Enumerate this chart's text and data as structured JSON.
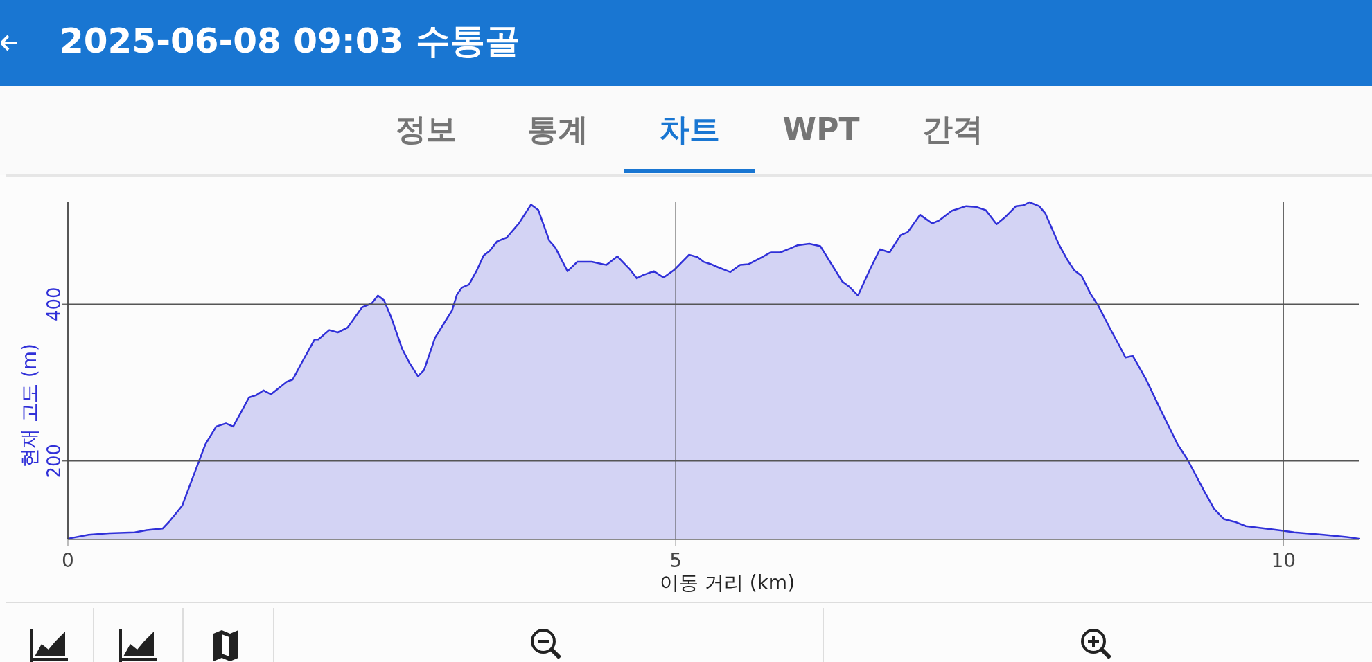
{
  "chart_data": {
    "type": "area",
    "title": "2025-06-08 09:03 수통골",
    "annotations": [
      "정보",
      "통계",
      "차트",
      "WPT",
      "간격"
    ],
    "xlabel": "이동 거리 (km)",
    "ylabel": "현재 고도 (m)",
    "xlim": [
      0,
      10.62
    ],
    "ylim": [
      100,
      530
    ],
    "xticks": [
      0,
      5,
      10
    ],
    "yticks": [
      200,
      400
    ],
    "grid": true,
    "color": "#3030d8",
    "x": [
      0,
      0.17,
      0.34,
      0.55,
      0.65,
      0.78,
      0.84,
      0.94,
      1.03,
      1.13,
      1.22,
      1.3,
      1.36,
      1.42,
      1.49,
      1.55,
      1.61,
      1.67,
      1.8,
      1.85,
      1.94,
      2.03,
      2.06,
      2.15,
      2.22,
      2.3,
      2.42,
      2.5,
      2.55,
      2.6,
      2.66,
      2.75,
      2.81,
      2.88,
      2.93,
      3.02,
      3.1,
      3.16,
      3.2,
      3.24,
      3.3,
      3.36,
      3.42,
      3.47,
      3.53,
      3.61,
      3.71,
      3.81,
      3.87,
      3.96,
      4.01,
      4.11,
      4.19,
      4.31,
      4.43,
      4.52,
      4.62,
      4.68,
      4.73,
      4.82,
      4.9,
      4.99,
      5.11,
      5.18,
      5.23,
      5.29,
      5.35,
      5.45,
      5.53,
      5.6,
      5.71,
      5.78,
      5.86,
      5.94,
      6.0,
      6.1,
      6.19,
      6.29,
      6.37,
      6.43,
      6.5,
      6.6,
      6.68,
      6.76,
      6.85,
      6.91,
      7.01,
      7.11,
      7.17,
      7.27,
      7.39,
      7.47,
      7.55,
      7.64,
      7.71,
      7.8,
      7.86,
      7.91,
      7.99,
      8.04,
      8.15,
      8.22,
      8.28,
      8.34,
      8.41,
      8.48,
      8.57,
      8.65,
      8.7,
      8.76,
      8.87,
      8.99,
      9.13,
      9.21,
      9.35,
      9.43,
      9.51,
      9.61,
      9.69,
      9.85,
      10.0,
      10.09,
      10.33,
      10.52,
      10.62
    ],
    "values": [
      101,
      106,
      108,
      109,
      112,
      114,
      124,
      143,
      180,
      221,
      244,
      248,
      244,
      261,
      281,
      284,
      290,
      285,
      301,
      304,
      330,
      355,
      355,
      367,
      364,
      370,
      396,
      401,
      411,
      405,
      383,
      343,
      325,
      308,
      316,
      357,
      377,
      392,
      412,
      421,
      425,
      442,
      462,
      468,
      480,
      485,
      503,
      527,
      520,
      481,
      472,
      442,
      454,
      454,
      450,
      461,
      445,
      433,
      437,
      442,
      434,
      444,
      463,
      460,
      454,
      451,
      447,
      441,
      450,
      451,
      460,
      466,
      466,
      471,
      475,
      477,
      474,
      449,
      429,
      422,
      411,
      445,
      470,
      466,
      488,
      492,
      514,
      503,
      507,
      519,
      525,
      524,
      520,
      502,
      511,
      525,
      526,
      530,
      525,
      516,
      477,
      457,
      443,
      436,
      414,
      397,
      370,
      347,
      332,
      334,
      304,
      265,
      221,
      202,
      161,
      139,
      126,
      122,
      117,
      114,
      111,
      109,
      106,
      103,
      101
    ]
  }
}
